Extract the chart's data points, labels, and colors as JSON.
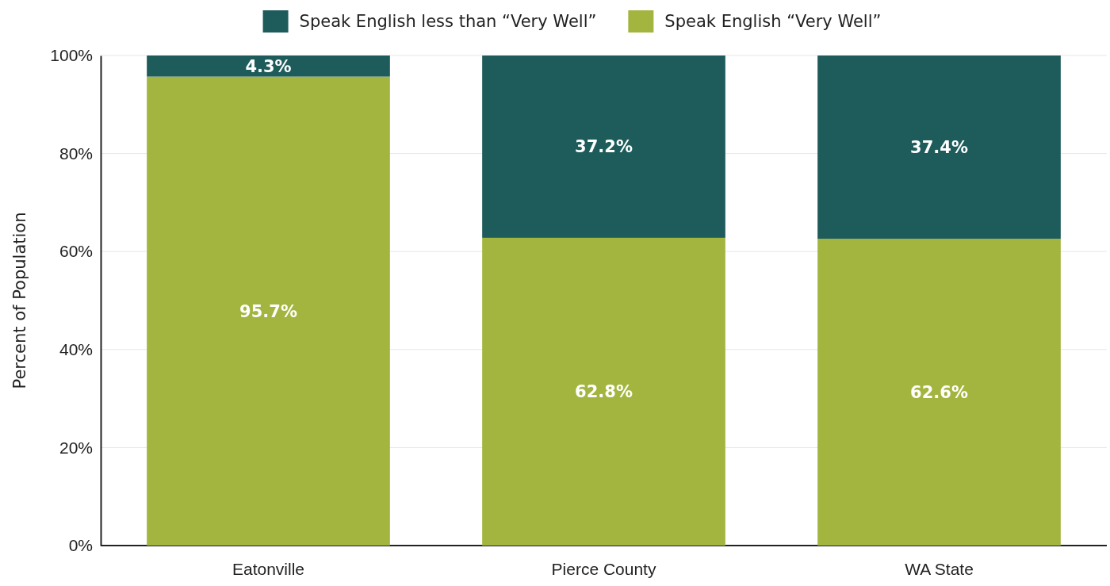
{
  "chart_data": {
    "type": "bar",
    "stacked": true,
    "ylabel": "Percent of Population",
    "categories": [
      "Eatonville",
      "Pierce County",
      "WA State"
    ],
    "series": [
      {
        "name": "Speak English “Very Well”",
        "color": "#a3b53f",
        "values": [
          95.7,
          62.8,
          62.6
        ],
        "value_labels": [
          "95.7%",
          "62.8%",
          "62.6%"
        ]
      },
      {
        "name": "Speak English less than “Very Well”",
        "color": "#1e5b5b",
        "values": [
          4.3,
          37.2,
          37.4
        ],
        "value_labels": [
          "4.3%",
          "37.2%",
          "37.4%"
        ]
      }
    ],
    "ylim": [
      0,
      100
    ],
    "yticks": [
      {
        "value": 0,
        "label": "0%"
      },
      {
        "value": 20,
        "label": "20%"
      },
      {
        "value": 40,
        "label": "40%"
      },
      {
        "value": 60,
        "label": "60%"
      },
      {
        "value": 80,
        "label": "80%"
      },
      {
        "value": 100,
        "label": "100%"
      }
    ],
    "grid": "y",
    "legend": "top"
  }
}
